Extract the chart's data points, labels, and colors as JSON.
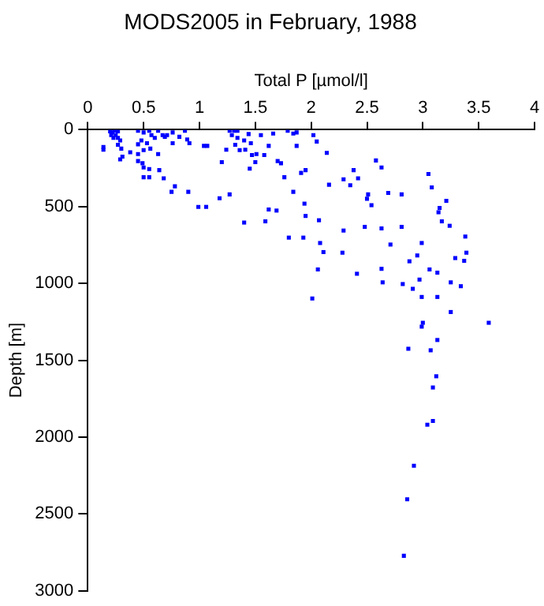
{
  "chart_data": {
    "type": "scatter",
    "title": "MODS2005 in February, 1988",
    "xlabel": "Total P [µmol/l]",
    "ylabel": "Depth [m]",
    "xlim": [
      0,
      4
    ],
    "xticks": [
      0,
      0.5,
      1,
      1.5,
      2,
      2.5,
      3,
      3.5,
      4
    ],
    "ylim": [
      3000,
      0
    ],
    "yticks": [
      0,
      500,
      1000,
      1500,
      2000,
      2500,
      3000
    ],
    "grid": false,
    "legend": false,
    "marker": "square",
    "series": [
      {
        "color": "#0000ff",
        "x": [
          0.2,
          0.22,
          0.24,
          0.27,
          0.21,
          0.25,
          0.23,
          0.27,
          0.29,
          0.27,
          0.3,
          0.31,
          0.29,
          0.14,
          0.14,
          0.38,
          0.45,
          0.45,
          0.45,
          0.49,
          0.5,
          0.55,
          0.5,
          0.55,
          0.63,
          0.64,
          0.68,
          0.75,
          0.78,
          0.9,
          0.99,
          1.06,
          1.18,
          1.27,
          1.4,
          1.59,
          1.62,
          1.69,
          1.8,
          1.93,
          1.94,
          1.95,
          0.45,
          0.5,
          0.55,
          0.57,
          0.6,
          0.63,
          0.67,
          0.69,
          0.71,
          0.76,
          0.76,
          0.82,
          0.87,
          0.89,
          0.91,
          1.04,
          1.07,
          1.2,
          1.24,
          1.27,
          1.29,
          1.31,
          1.32,
          1.34,
          1.34,
          1.36,
          1.4,
          1.41,
          1.44,
          1.46,
          1.45,
          1.47,
          1.5,
          1.51,
          1.55,
          1.58,
          1.62,
          1.66,
          1.7,
          1.73,
          1.76,
          1.79,
          1.84,
          1.87,
          1.91,
          1.95,
          2.02,
          0.48,
          0.53,
          0.56,
          0.5,
          1.87,
          2.05,
          2.14,
          2.58,
          2.63,
          2.38,
          2.29,
          2.42,
          2.35,
          2.16,
          1.84,
          2.51,
          2.5,
          2.69,
          2.81,
          3.05,
          3.08,
          3.21,
          3.15,
          3.14,
          2.54,
          3.17,
          3.24,
          2.07,
          2.29,
          2.48,
          2.63,
          2.81,
          2.08,
          2.11,
          2.28,
          2.71,
          2.99,
          3.38,
          3.39,
          3.37,
          3.29,
          2.95,
          2.88,
          3.06,
          3.13,
          2.63,
          2.41,
          2.06,
          2.01,
          2.64,
          2.82,
          2.91,
          2.97,
          2.99,
          3.13,
          3.25,
          3.34,
          3.25,
          3.59,
          3.0,
          2.99,
          3.13,
          2.87,
          3.07,
          3.12,
          3.09,
          3.09,
          3.04,
          2.92,
          2.86,
          2.83
        ],
        "values": [
          11,
          18,
          7,
          11,
          35,
          35,
          53,
          53,
          70,
          98,
          123,
          175,
          193,
          112,
          130,
          147,
          95,
          158,
          204,
          218,
          246,
          256,
          309,
          309,
          158,
          263,
          316,
          404,
          368,
          404,
          502,
          502,
          446,
          421,
          604,
          596,
          519,
          526,
          702,
          702,
          481,
          561,
          7,
          18,
          7,
          35,
          53,
          7,
          35,
          46,
          35,
          18,
          88,
          46,
          7,
          63,
          88,
          105,
          105,
          211,
          130,
          7,
          35,
          7,
          98,
          53,
          7,
          133,
          70,
          130,
          28,
          88,
          253,
          165,
          211,
          158,
          35,
          165,
          105,
          25,
          204,
          218,
          309,
          7,
          25,
          18,
          281,
          263,
          35,
          70,
          88,
          123,
          133,
          105,
          77,
          151,
          200,
          246,
          263,
          323,
          316,
          361,
          358,
          404,
          421,
          449,
          411,
          421,
          288,
          375,
          463,
          509,
          537,
          491,
          596,
          625,
          589,
          656,
          632,
          642,
          632,
          737,
          796,
          800,
          747,
          737,
          695,
          800,
          853,
          835,
          818,
          856,
          909,
          930,
          905,
          937,
          909,
          1098,
          993,
          1004,
          1035,
          975,
          1088,
          1088,
          993,
          1018,
          1186,
          1256,
          1256,
          1281,
          1368,
          1425,
          1435,
          1604,
          1677,
          1895,
          1919,
          2186,
          2404,
          2772
        ]
      }
    ]
  }
}
